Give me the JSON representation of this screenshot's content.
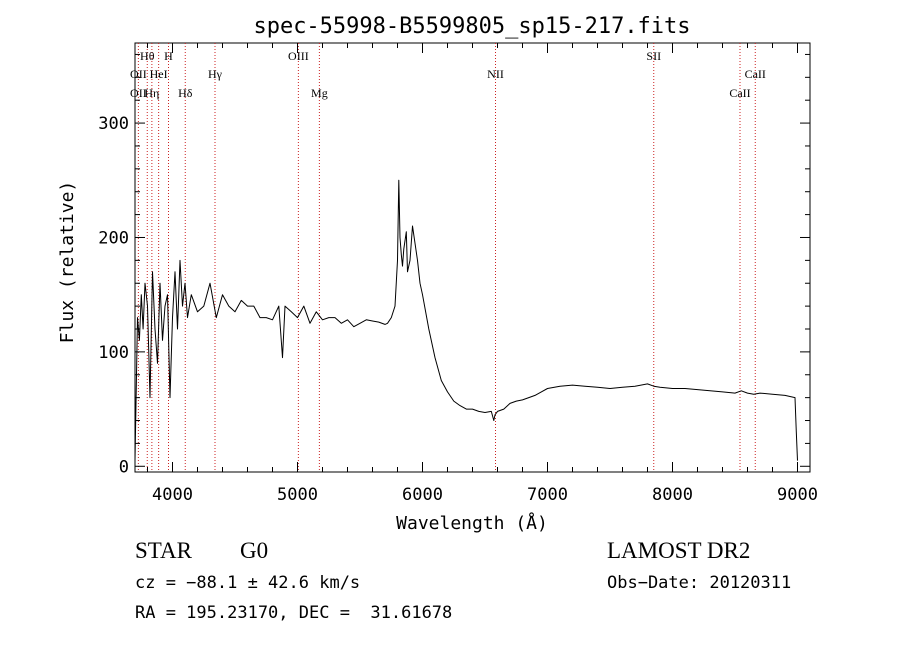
{
  "chart_data": {
    "type": "line",
    "title": "spec-55998-B5599805_sp15-217.fits",
    "xlabel": "Wavelength (Å)",
    "ylabel": "Flux (relative)",
    "xlim": [
      3700,
      9100
    ],
    "ylim": [
      -5,
      370
    ],
    "xticks": [
      4000,
      5000,
      6000,
      7000,
      8000,
      9000
    ],
    "yticks": [
      0,
      100,
      200,
      300
    ],
    "series": [
      {
        "x": [
          3700,
          3720,
          3735,
          3750,
          3765,
          3780,
          3800,
          3820,
          3840,
          3860,
          3880,
          3900,
          3920,
          3940,
          3960,
          3980,
          4000,
          4020,
          4040,
          4060,
          4080,
          4100,
          4120,
          4150,
          4200,
          4250,
          4300,
          4350,
          4400,
          4450,
          4500,
          4550,
          4600,
          4650,
          4700,
          4750,
          4800,
          4850,
          4880,
          4900,
          4950,
          5000,
          5050,
          5100,
          5150,
          5200,
          5250,
          5300,
          5350,
          5400,
          5450,
          5500,
          5550,
          5600,
          5650,
          5700,
          5720,
          5750,
          5780,
          5800,
          5810,
          5820,
          5830,
          5840,
          5850,
          5870,
          5880,
          5900,
          5920,
          5940,
          5960,
          5980,
          6000,
          6050,
          6100,
          6150,
          6200,
          6250,
          6300,
          6350,
          6400,
          6450,
          6500,
          6550,
          6570,
          6580,
          6600,
          6650,
          6700,
          6750,
          6800,
          6850,
          6900,
          6950,
          7000,
          7100,
          7200,
          7300,
          7400,
          7500,
          7600,
          7700,
          7800,
          7850,
          7900,
          8000,
          8100,
          8200,
          8300,
          8400,
          8500,
          8550,
          8600,
          8650,
          8700,
          8800,
          8900,
          8980,
          8990,
          9000
        ],
        "y": [
          5,
          130,
          110,
          150,
          120,
          160,
          140,
          60,
          170,
          120,
          90,
          160,
          110,
          140,
          150,
          60,
          130,
          170,
          120,
          180,
          140,
          160,
          130,
          150,
          135,
          140,
          160,
          130,
          150,
          140,
          135,
          145,
          140,
          140,
          130,
          130,
          128,
          140,
          95,
          140,
          135,
          130,
          140,
          125,
          135,
          128,
          130,
          130,
          125,
          128,
          122,
          125,
          128,
          127,
          126,
          124,
          125,
          130,
          140,
          180,
          250,
          200,
          185,
          175,
          190,
          205,
          170,
          180,
          210,
          195,
          180,
          160,
          150,
          120,
          95,
          75,
          65,
          57,
          53,
          50,
          50,
          48,
          47,
          48,
          40,
          45,
          48,
          50,
          55,
          57,
          58,
          60,
          62,
          65,
          68,
          70,
          71,
          70,
          69,
          68,
          69,
          70,
          72,
          70,
          69,
          68,
          68,
          67,
          66,
          65,
          64,
          66,
          64,
          63,
          64,
          63,
          62,
          60,
          30,
          5
        ]
      }
    ],
    "line_labels": [
      {
        "text": "Hθ",
        "x": 3798,
        "row": 0
      },
      {
        "text": "H",
        "x": 3968,
        "row": 0
      },
      {
        "text": "OII",
        "x": 3727,
        "row": 1
      },
      {
        "text": "HeI",
        "x": 3889,
        "row": 1
      },
      {
        "text": "Hγ",
        "x": 4340,
        "row": 1
      },
      {
        "text": "OII",
        "x": 3727,
        "row": 2
      },
      {
        "text": "Hη",
        "x": 3835,
        "row": 2
      },
      {
        "text": "Hδ",
        "x": 4102,
        "row": 2
      },
      {
        "text": "OIII",
        "x": 5007,
        "row": 0
      },
      {
        "text": "Mg",
        "x": 5175,
        "row": 2
      },
      {
        "text": "NII",
        "x": 6584,
        "row": 1
      },
      {
        "text": "SII",
        "x": 7850,
        "row": 0
      },
      {
        "text": "CaII",
        "x": 8540,
        "row": 2
      },
      {
        "text": "CaII",
        "x": 8662,
        "row": 1
      }
    ],
    "line_positions": [
      3727,
      3798,
      3835,
      3889,
      3968,
      4102,
      4340,
      5007,
      5175,
      6584,
      7850,
      8540,
      8662
    ],
    "line_color": "#cc2222",
    "grid": false
  },
  "info": {
    "class_label": "STAR",
    "subclass": "G0",
    "survey": "LAMOST DR2",
    "cz_line": "cz = −88.1 ± 42.6 km/s",
    "obs_date": "Obs−Date: 20120311",
    "coords": "RA = 195.23170, DEC =  31.61678"
  }
}
